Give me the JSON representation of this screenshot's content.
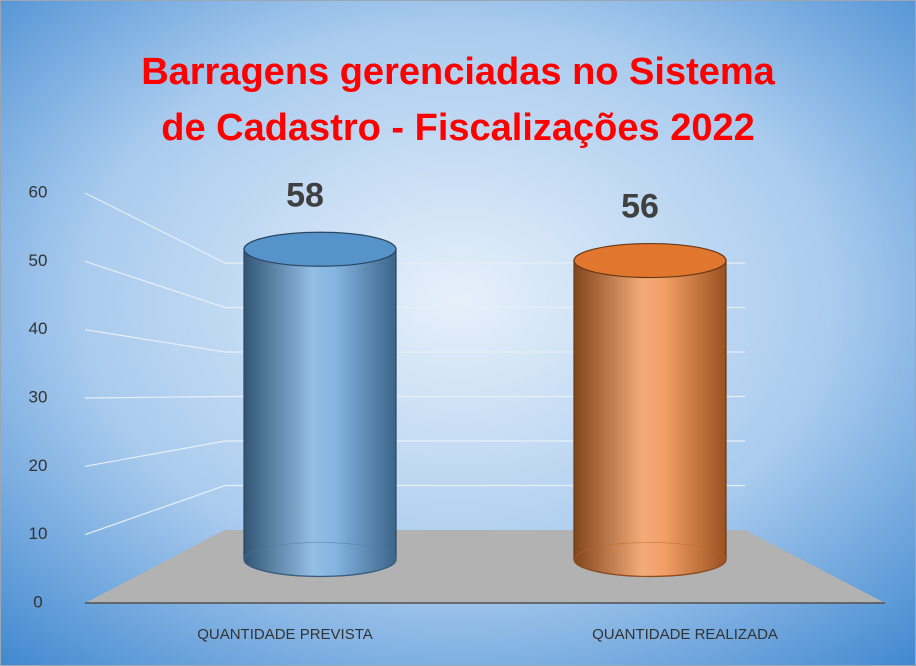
{
  "chart_data": {
    "type": "bar3d",
    "title": "Barragens gerenciadas no Sistema de Cadastro - Fiscalizações 2022",
    "categories": [
      "QUANTIDADE PREVISTA",
      "QUANTIDADE REALIZADA"
    ],
    "values": [
      58,
      56
    ],
    "colors": [
      "#5b9bd5",
      "#ed7d31"
    ],
    "ylim": [
      0,
      60
    ],
    "yticks": [
      0,
      10,
      20,
      30,
      40,
      50,
      60
    ],
    "grid": true
  }
}
